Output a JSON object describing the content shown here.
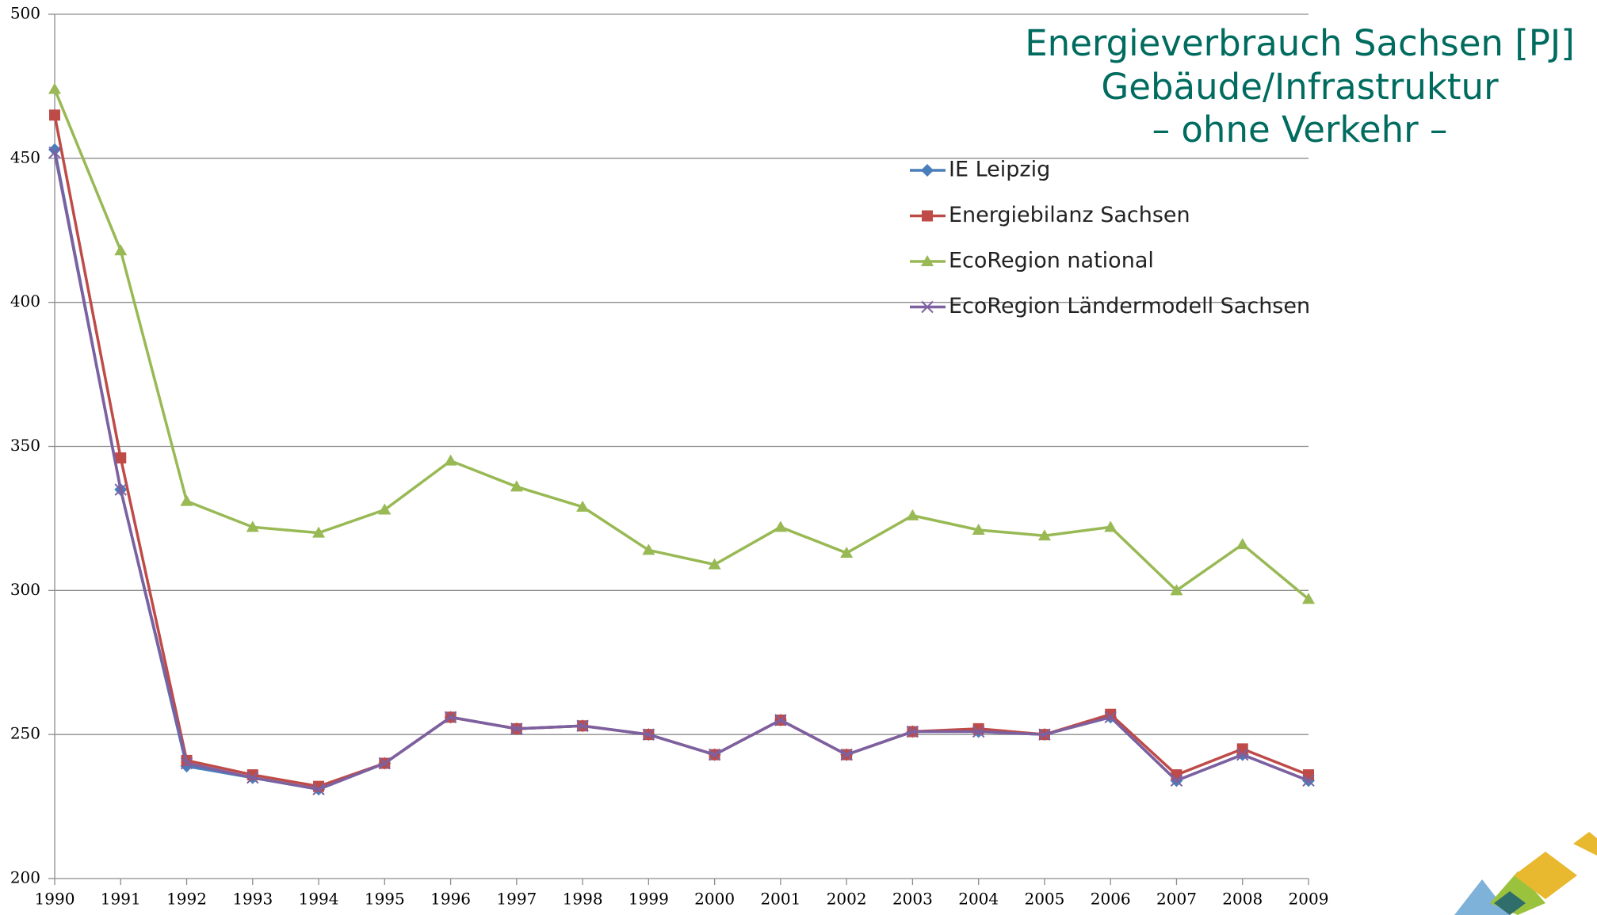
{
  "chart_data": {
    "type": "line",
    "title": "Energieverbrauch Sachsen [PJ]",
    "subtitle": [
      "Gebäude/Infrastruktur",
      "– ohne Verkehr –"
    ],
    "categories": [
      "1990",
      "1991",
      "1992",
      "1993",
      "1994",
      "1995",
      "1996",
      "1997",
      "1998",
      "1999",
      "2000",
      "2001",
      "2002",
      "2003",
      "2004",
      "2005",
      "2006",
      "2007",
      "2008",
      "2009"
    ],
    "series": [
      {
        "name": "IE Leipzig",
        "color": "#4a7ebb",
        "marker": "diamond",
        "values": [
          453,
          335,
          239,
          235,
          231,
          240,
          256,
          252,
          253,
          250,
          243,
          255,
          243,
          251,
          251,
          250,
          256,
          234,
          243,
          234
        ]
      },
      {
        "name": "Energiebilanz  Sachsen",
        "color": "#be4b48",
        "marker": "square",
        "values": [
          465,
          346,
          241,
          236,
          232,
          240,
          256,
          252,
          253,
          250,
          243,
          255,
          243,
          251,
          252,
          250,
          257,
          236,
          245,
          236
        ]
      },
      {
        "name": "EcoRegion national",
        "color": "#98b954",
        "marker": "triangle",
        "values": [
          474,
          418,
          331,
          322,
          320,
          328,
          345,
          336,
          329,
          314,
          309,
          322,
          313,
          326,
          321,
          319,
          322,
          300,
          316,
          297
        ]
      },
      {
        "name": "EcoRegion Ländermodell  Sachsen",
        "color": "#7d60a0",
        "marker": "x",
        "values": [
          452,
          335,
          240,
          235,
          231,
          240,
          256,
          252,
          253,
          250,
          243,
          255,
          243,
          251,
          251,
          250,
          256,
          234,
          243,
          234
        ]
      }
    ],
    "ylim": [
      200,
      500
    ],
    "yticks": [
      200,
      250,
      300,
      350,
      400,
      450,
      500
    ],
    "grid": true
  }
}
